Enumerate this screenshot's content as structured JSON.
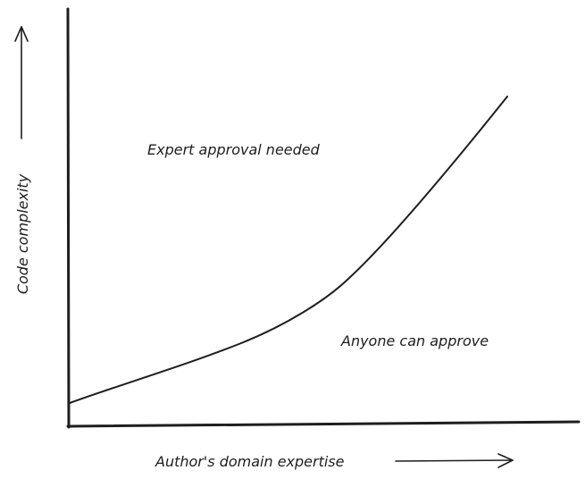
{
  "diagram": {
    "x_axis_label": "Author's domain expertise",
    "y_axis_label": "Code complexity",
    "regions": {
      "upper_label": "Expert approval needed",
      "lower_label": "Anyone can approve"
    },
    "colors": {
      "ink": "#1e1e1e",
      "background": "#ffffff"
    }
  }
}
